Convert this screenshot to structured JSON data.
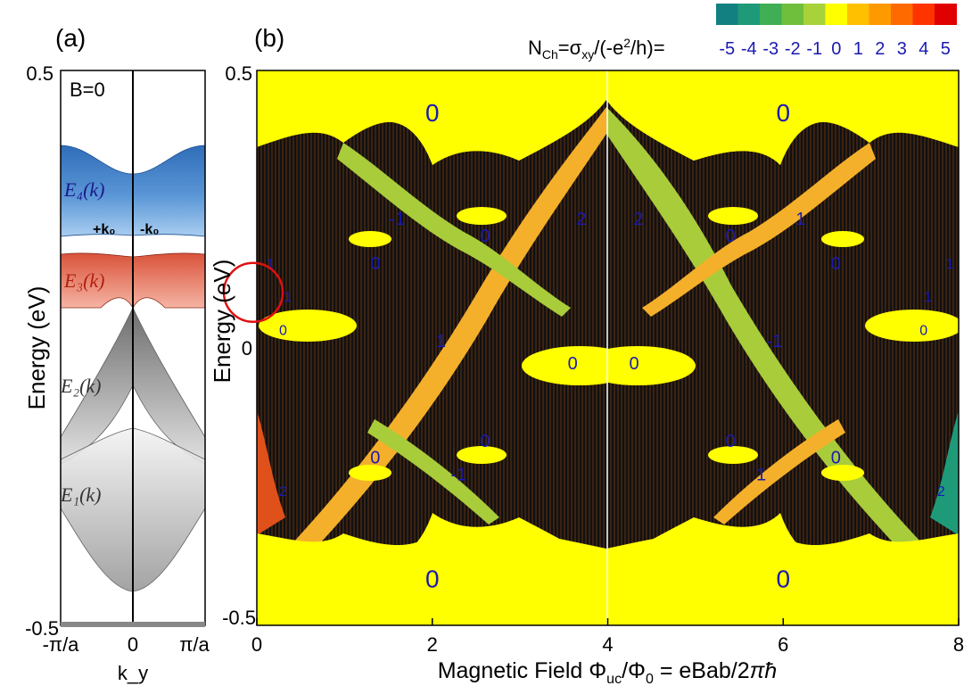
{
  "panel_a": {
    "label": "(a)",
    "annotation": "B=0",
    "band_labels": [
      "E₁(k)",
      "E₂(k)",
      "E₃(k)",
      "E₄(k)"
    ],
    "k_labels": [
      "+k₀",
      "-k₀"
    ]
  },
  "panel_b": {
    "label": "(b)",
    "colorbar_title": "N_Ch=σ_xy/(-e²/h)=",
    "colorbar_ticks": [
      "-5",
      "-4",
      "-3",
      "-2",
      "-1",
      "0",
      "1",
      "2",
      "3",
      "4",
      "5"
    ],
    "colorbar_colors": [
      "#128080",
      "#1f9a78",
      "#3fae55",
      "#6fbe3c",
      "#a8d23a",
      "#ffff00",
      "#ffc000",
      "#ff9900",
      "#ff6a00",
      "#ff3300",
      "#e00000"
    ]
  },
  "colors": {
    "E4_blue": "#4a86c8",
    "E3_red": "#e8735a",
    "bands_gray": "#9a9a9a",
    "gap_yellow": "#ffff00",
    "chern_plus1": "#f4b02a",
    "chern_minus1": "#a8cc3a",
    "highlight_circle": "#e01010"
  },
  "chart_data": [
    {
      "type": "line",
      "title": "B=0",
      "xlabel": "k_y",
      "ylabel": "Energy (eV)",
      "xticks": [
        "-π/a",
        "0",
        "π/a"
      ],
      "yticks": [
        "0.5",
        "-0.5"
      ],
      "ylim": [
        -0.5,
        0.5
      ],
      "series": [
        {
          "name": "E₄(k)",
          "energy_range": [
            0.09,
            0.33
          ]
        },
        {
          "name": "E₃(k)",
          "energy_range": [
            0.06,
            0.15
          ]
        },
        {
          "name": "E₂(k)",
          "energy_range": [
            -0.1,
            0.06
          ]
        },
        {
          "name": "E₁(k)",
          "energy_range": [
            -0.46,
            -0.1
          ]
        }
      ]
    },
    {
      "type": "heatmap",
      "xlabel": "Magnetic Field Φ_uc/Φ₀ = eBab/2πħ",
      "ylabel": "Energy (eV)",
      "xlim": [
        0,
        8
      ],
      "ylim": [
        -0.5,
        0.5
      ],
      "xticks": [
        "0",
        "2",
        "4",
        "6",
        "8"
      ],
      "yticks": [
        "0.5",
        "0",
        "-0.5"
      ],
      "gap_labels": [
        {
          "text": "0",
          "x": 2.0,
          "y": 0.42
        },
        {
          "text": "0",
          "x": 6.0,
          "y": 0.42
        },
        {
          "text": "-1",
          "x": 1.6,
          "y": 0.23
        },
        {
          "text": "1",
          "x": 6.2,
          "y": 0.23
        },
        {
          "text": "0",
          "x": 2.6,
          "y": 0.2
        },
        {
          "text": "0",
          "x": 5.4,
          "y": 0.2
        },
        {
          "text": "2",
          "x": 3.7,
          "y": 0.23
        },
        {
          "text": "2",
          "x": 4.35,
          "y": 0.23
        },
        {
          "text": "0",
          "x": 1.35,
          "y": 0.15
        },
        {
          "text": "0",
          "x": 6.6,
          "y": 0.15
        },
        {
          "text": "1",
          "x": 0.15,
          "y": 0.15
        },
        {
          "text": "1",
          "x": 7.9,
          "y": 0.15
        },
        {
          "text": "1",
          "x": 0.35,
          "y": 0.09
        },
        {
          "text": "1",
          "x": 7.65,
          "y": 0.09
        },
        {
          "text": "0",
          "x": 0.3,
          "y": 0.03
        },
        {
          "text": "0",
          "x": 7.6,
          "y": 0.03
        },
        {
          "text": "1",
          "x": 2.1,
          "y": 0.01
        },
        {
          "text": "-1",
          "x": 5.9,
          "y": 0.01
        },
        {
          "text": "0",
          "x": 3.6,
          "y": -0.03
        },
        {
          "text": "0",
          "x": 4.3,
          "y": -0.03
        },
        {
          "text": "0",
          "x": 2.6,
          "y": -0.17
        },
        {
          "text": "0",
          "x": 5.4,
          "y": -0.17
        },
        {
          "text": "0",
          "x": 1.35,
          "y": -0.2
        },
        {
          "text": "0",
          "x": 6.6,
          "y": -0.2
        },
        {
          "text": "-1",
          "x": 2.3,
          "y": -0.23
        },
        {
          "text": "1",
          "x": 5.75,
          "y": -0.23
        },
        {
          "text": "2",
          "x": 0.3,
          "y": -0.26
        },
        {
          "text": "2",
          "x": 7.8,
          "y": -0.26
        },
        {
          "text": "0",
          "x": 2.0,
          "y": -0.42
        },
        {
          "text": "0",
          "x": 6.0,
          "y": -0.42
        }
      ],
      "highlight": {
        "x": 0.0,
        "y": 0.1
      }
    }
  ]
}
